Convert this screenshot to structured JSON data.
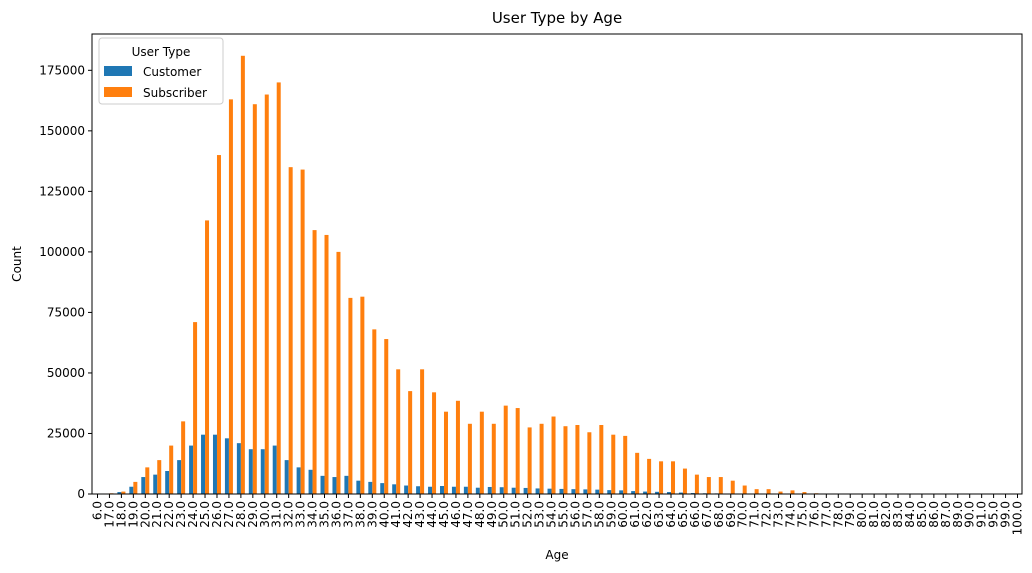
{
  "chart_data": {
    "type": "bar",
    "title": "User Type by Age",
    "xlabel": "Age",
    "ylabel": "Count",
    "ylim": [
      0,
      190000
    ],
    "yticks": [
      "0",
      "25000",
      "50000",
      "75000",
      "100000",
      "125000",
      "150000",
      "175000"
    ],
    "ytick_values": [
      0,
      25000,
      50000,
      75000,
      100000,
      125000,
      150000,
      175000
    ],
    "grid": false,
    "legend": {
      "title": "User Type",
      "placement": "top-left"
    },
    "categories": [
      "6.0",
      "17.0",
      "18.0",
      "19.0",
      "20.0",
      "21.0",
      "22.0",
      "23.0",
      "24.0",
      "25.0",
      "26.0",
      "27.0",
      "28.0",
      "29.0",
      "30.0",
      "31.0",
      "32.0",
      "33.0",
      "34.0",
      "35.0",
      "36.0",
      "37.0",
      "38.0",
      "39.0",
      "40.0",
      "41.0",
      "42.0",
      "43.0",
      "44.0",
      "45.0",
      "46.0",
      "47.0",
      "48.0",
      "49.0",
      "50.0",
      "51.0",
      "52.0",
      "53.0",
      "54.0",
      "55.0",
      "56.0",
      "57.0",
      "58.0",
      "59.0",
      "60.0",
      "61.0",
      "62.0",
      "63.0",
      "64.0",
      "65.0",
      "66.0",
      "67.0",
      "68.0",
      "69.0",
      "70.0",
      "71.0",
      "72.0",
      "73.0",
      "74.0",
      "75.0",
      "76.0",
      "77.0",
      "78.0",
      "79.0",
      "80.0",
      "81.0",
      "82.0",
      "83.0",
      "84.0",
      "85.0",
      "86.0",
      "87.0",
      "89.0",
      "90.0",
      "91.0",
      "95.0",
      "99.0",
      "100.0"
    ],
    "series": [
      {
        "name": "Customer",
        "color": "#1f77b4",
        "values": [
          0,
          200,
          800,
          3000,
          7000,
          8000,
          9500,
          14000,
          20000,
          24500,
          24500,
          23000,
          21000,
          18500,
          18500,
          20000,
          14000,
          11000,
          10000,
          7500,
          7000,
          7500,
          5500,
          5000,
          4500,
          4000,
          3500,
          3200,
          3000,
          3300,
          3000,
          3000,
          2600,
          2900,
          2800,
          2600,
          2500,
          2300,
          2200,
          2100,
          2000,
          1900,
          1800,
          1600,
          1500,
          1200,
          1000,
          900,
          800,
          600,
          400,
          300,
          250,
          200,
          100,
          50,
          40,
          30,
          20,
          10,
          5,
          5,
          0,
          0,
          0,
          0,
          0,
          0,
          0,
          0,
          0,
          0,
          0,
          0,
          0,
          0,
          0,
          0
        ]
      },
      {
        "name": "Subscriber",
        "color": "#ff7f0e",
        "values": [
          0,
          300,
          1000,
          5000,
          11000,
          14000,
          20000,
          30000,
          71000,
          113000,
          140000,
          163000,
          181000,
          161000,
          165000,
          170000,
          135000,
          134000,
          109000,
          107000,
          100000,
          81000,
          81500,
          68000,
          64000,
          51500,
          42500,
          51500,
          42000,
          34000,
          38500,
          29000,
          34000,
          29000,
          36500,
          35500,
          27500,
          29000,
          32000,
          28000,
          28500,
          25500,
          28500,
          24500,
          24000,
          17000,
          14500,
          13500,
          13500,
          10500,
          8000,
          7000,
          7000,
          5500,
          3500,
          2000,
          2000,
          1000,
          1500,
          800,
          300,
          200,
          100,
          100,
          50,
          50,
          20,
          20,
          10,
          10,
          10,
          10,
          10,
          10,
          10,
          10,
          10,
          10
        ]
      }
    ]
  }
}
